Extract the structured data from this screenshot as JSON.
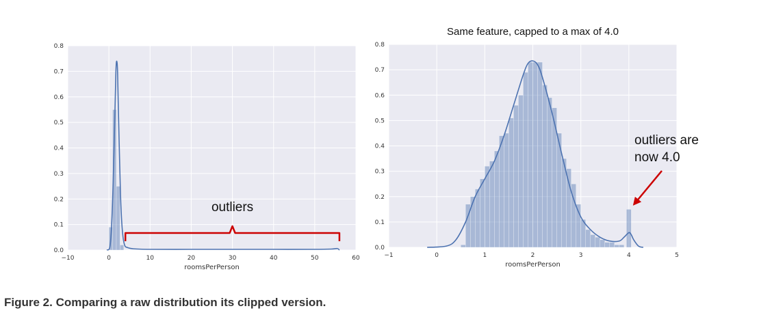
{
  "caption": "Figure 2. Comparing a raw distribution its clipped version.",
  "colors": {
    "plot_bg": "#eaeaf2",
    "grid": "#ffffff",
    "bar_fill": "#4c72b0",
    "kde_line": "#4c72b0",
    "annotation": "#cc0000"
  },
  "chart_data": [
    {
      "type": "histogram",
      "title": "",
      "xlabel": "roomsPerPerson",
      "ylabel": "",
      "xlim": [
        -10,
        60
      ],
      "ylim": [
        0,
        0.8
      ],
      "xticks": [
        "−10",
        "0",
        "10",
        "20",
        "30",
        "40",
        "50",
        "60"
      ],
      "yticks": [
        "0.0",
        "0.1",
        "0.2",
        "0.3",
        "0.4",
        "0.5",
        "0.6",
        "0.7",
        "0.8"
      ],
      "grid": true,
      "bins": [
        {
          "x0": 0.0,
          "x1": 0.9,
          "value": 0.09
        },
        {
          "x0": 0.9,
          "x1": 1.8,
          "value": 0.55
        },
        {
          "x0": 1.8,
          "x1": 2.7,
          "value": 0.25
        },
        {
          "x0": 2.7,
          "x1": 3.6,
          "value": 0.02
        }
      ],
      "kde": {
        "x": [
          -0.5,
          0.2,
          0.6,
          1.0,
          1.4,
          1.7,
          1.9,
          2.1,
          2.3,
          2.6,
          2.9,
          3.3,
          3.8,
          4.5,
          6,
          10,
          20,
          30,
          40,
          50,
          54,
          55.5,
          56
        ],
        "y": [
          0,
          0.01,
          0.08,
          0.25,
          0.5,
          0.7,
          0.74,
          0.7,
          0.55,
          0.35,
          0.18,
          0.07,
          0.02,
          0.01,
          0.005,
          0.003,
          0.003,
          0.003,
          0.003,
          0.003,
          0.004,
          0.006,
          0
        ]
      },
      "annotation": {
        "text": "outliers",
        "brace_from": 4,
        "brace_to": 56
      }
    },
    {
      "type": "histogram",
      "title": "Same feature, capped to a max of 4.0",
      "xlabel": "roomsPerPerson",
      "ylabel": "",
      "xlim": [
        -1,
        5
      ],
      "ylim": [
        0,
        0.8
      ],
      "xticks": [
        "−1",
        "0",
        "1",
        "2",
        "3",
        "4",
        "5"
      ],
      "yticks": [
        "0.0",
        "0.1",
        "0.2",
        "0.3",
        "0.4",
        "0.5",
        "0.6",
        "0.7",
        "0.8"
      ],
      "grid": true,
      "bins": [
        {
          "x0": 0.5,
          "x1": 0.6,
          "value": 0.01
        },
        {
          "x0": 0.6,
          "x1": 0.7,
          "value": 0.17
        },
        {
          "x0": 0.7,
          "x1": 0.8,
          "value": 0.2
        },
        {
          "x0": 0.8,
          "x1": 0.9,
          "value": 0.23
        },
        {
          "x0": 0.9,
          "x1": 1.0,
          "value": 0.27
        },
        {
          "x0": 1.0,
          "x1": 1.1,
          "value": 0.32
        },
        {
          "x0": 1.1,
          "x1": 1.2,
          "value": 0.34
        },
        {
          "x0": 1.2,
          "x1": 1.3,
          "value": 0.38
        },
        {
          "x0": 1.3,
          "x1": 1.4,
          "value": 0.44
        },
        {
          "x0": 1.4,
          "x1": 1.5,
          "value": 0.45
        },
        {
          "x0": 1.5,
          "x1": 1.6,
          "value": 0.51
        },
        {
          "x0": 1.6,
          "x1": 1.7,
          "value": 0.56
        },
        {
          "x0": 1.7,
          "x1": 1.8,
          "value": 0.6
        },
        {
          "x0": 1.8,
          "x1": 1.9,
          "value": 0.69
        },
        {
          "x0": 1.9,
          "x1": 2.0,
          "value": 0.73
        },
        {
          "x0": 2.0,
          "x1": 2.1,
          "value": 0.73
        },
        {
          "x0": 2.1,
          "x1": 2.2,
          "value": 0.73
        },
        {
          "x0": 2.2,
          "x1": 2.3,
          "value": 0.64
        },
        {
          "x0": 2.3,
          "x1": 2.4,
          "value": 0.59
        },
        {
          "x0": 2.4,
          "x1": 2.5,
          "value": 0.55
        },
        {
          "x0": 2.5,
          "x1": 2.6,
          "value": 0.45
        },
        {
          "x0": 2.6,
          "x1": 2.7,
          "value": 0.35
        },
        {
          "x0": 2.7,
          "x1": 2.8,
          "value": 0.31
        },
        {
          "x0": 2.8,
          "x1": 2.9,
          "value": 0.25
        },
        {
          "x0": 2.9,
          "x1": 3.0,
          "value": 0.17
        },
        {
          "x0": 3.0,
          "x1": 3.1,
          "value": 0.11
        },
        {
          "x0": 3.1,
          "x1": 3.2,
          "value": 0.07
        },
        {
          "x0": 3.2,
          "x1": 3.3,
          "value": 0.05
        },
        {
          "x0": 3.3,
          "x1": 3.4,
          "value": 0.04
        },
        {
          "x0": 3.4,
          "x1": 3.5,
          "value": 0.03
        },
        {
          "x0": 3.5,
          "x1": 3.6,
          "value": 0.02
        },
        {
          "x0": 3.6,
          "x1": 3.7,
          "value": 0.02
        },
        {
          "x0": 3.7,
          "x1": 3.8,
          "value": 0.01
        },
        {
          "x0": 3.8,
          "x1": 3.9,
          "value": 0.01
        },
        {
          "x0": 3.95,
          "x1": 4.05,
          "value": 0.15
        }
      ],
      "kde": {
        "x": [
          -0.2,
          0.2,
          0.4,
          0.6,
          0.8,
          1.0,
          1.2,
          1.4,
          1.6,
          1.8,
          1.9,
          2.0,
          2.1,
          2.2,
          2.4,
          2.6,
          2.8,
          3.0,
          3.2,
          3.4,
          3.6,
          3.8,
          3.9,
          4.0,
          4.05,
          4.1,
          4.2,
          4.3
        ],
        "y": [
          0,
          0.005,
          0.03,
          0.1,
          0.2,
          0.27,
          0.34,
          0.44,
          0.56,
          0.68,
          0.725,
          0.735,
          0.72,
          0.67,
          0.53,
          0.37,
          0.22,
          0.12,
          0.07,
          0.04,
          0.025,
          0.025,
          0.04,
          0.058,
          0.05,
          0.03,
          0.005,
          0
        ]
      },
      "annotation": {
        "text_lines": [
          "outliers are",
          "now 4.0"
        ],
        "arrow_target_x": 4.0,
        "arrow_target_y": 0.17
      }
    }
  ]
}
